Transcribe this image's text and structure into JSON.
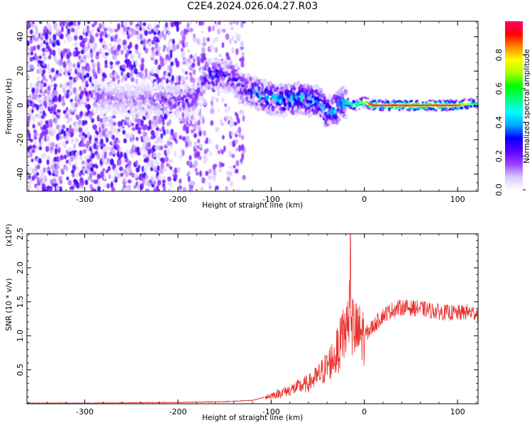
{
  "title": "C2E4.2024.026.04.27.R03",
  "chart_data": [
    {
      "type": "heatmap",
      "xlabel": "Height of straight line (km)",
      "ylabel": "Frequency (Hz)",
      "xlim": [
        -362,
        122
      ],
      "ylim": [
        -50,
        49
      ],
      "x_ticks": [
        -300,
        -200,
        -100,
        0,
        100
      ],
      "y_ticks": [
        -40,
        -20,
        0,
        20,
        40
      ],
      "colorbar": {
        "label": "Normalized spectral amplitude",
        "range": [
          0.0,
          1.0
        ],
        "ticks": [
          0.0,
          0.2,
          0.4,
          0.6,
          0.8
        ],
        "colors": [
          "#ffffff",
          "#d8c8ff",
          "#9a40ff",
          "#5a00ff",
          "#0000ff",
          "#00aaff",
          "#00ffff",
          "#00ff7f",
          "#00ff00",
          "#aaff00",
          "#ffff00",
          "#ff8c00",
          "#ff0000",
          "#ff0066"
        ]
      },
      "trace": {
        "x": [
          -290,
          -250,
          -220,
          -200,
          -180,
          -170,
          -160,
          -150,
          -140,
          -130,
          -120,
          -110,
          -100,
          -90,
          -80,
          -70,
          -60,
          -50,
          -45,
          -40,
          -35,
          -30,
          -25,
          -20,
          -15,
          -10,
          -5,
          0,
          10,
          20,
          40,
          60,
          80,
          100,
          110,
          120
        ],
        "y": [
          5,
          3,
          4,
          2,
          4,
          18,
          17,
          17,
          16,
          10,
          8,
          6,
          4,
          3,
          3,
          4,
          3,
          2,
          0,
          -4,
          -2,
          -2,
          1,
          2,
          1,
          0,
          1,
          2,
          0,
          0,
          0,
          0,
          0,
          0,
          1,
          1
        ],
        "peak_amplitude": [
          0.15,
          0.15,
          0.2,
          0.25,
          0.25,
          0.3,
          0.35,
          0.3,
          0.3,
          0.35,
          0.4,
          0.45,
          0.45,
          0.45,
          0.5,
          0.5,
          0.5,
          0.45,
          0.5,
          0.45,
          0.5,
          0.55,
          0.55,
          0.6,
          0.65,
          0.65,
          0.7,
          0.8,
          0.9,
          0.9,
          0.9,
          0.9,
          0.9,
          0.85,
          0.7,
          0.5
        ]
      }
    },
    {
      "type": "line",
      "xlabel": "Height of straight line (km)",
      "ylabel": "SNR (10 * v/v)",
      "y_multiplier": "(x10⁴)",
      "xlim": [
        -362,
        122
      ],
      "ylim": [
        0,
        2.5
      ],
      "x_ticks": [
        -300,
        -200,
        -100,
        0,
        100
      ],
      "y_ticks": [
        0.5,
        1.0,
        1.5,
        2.0,
        2.5
      ],
      "y_tick_labels": [
        "0.5",
        "1.0",
        "1.5",
        "2.0",
        "2.5"
      ],
      "color": "#e8302c",
      "x": [
        -362,
        -300,
        -250,
        -200,
        -150,
        -120,
        -100,
        -80,
        -60,
        -50,
        -40,
        -30,
        -25,
        -20,
        -17,
        -15,
        -14,
        -10,
        0,
        10,
        20,
        30,
        40,
        60,
        80,
        100,
        110,
        122
      ],
      "y": [
        0.01,
        0.01,
        0.015,
        0.02,
        0.03,
        0.05,
        0.12,
        0.2,
        0.3,
        0.4,
        0.55,
        0.75,
        0.9,
        1.1,
        1.3,
        2.5,
        1.2,
        1.05,
        1.0,
        1.15,
        1.3,
        1.38,
        1.42,
        1.4,
        1.35,
        1.33,
        1.35,
        1.33
      ]
    }
  ]
}
